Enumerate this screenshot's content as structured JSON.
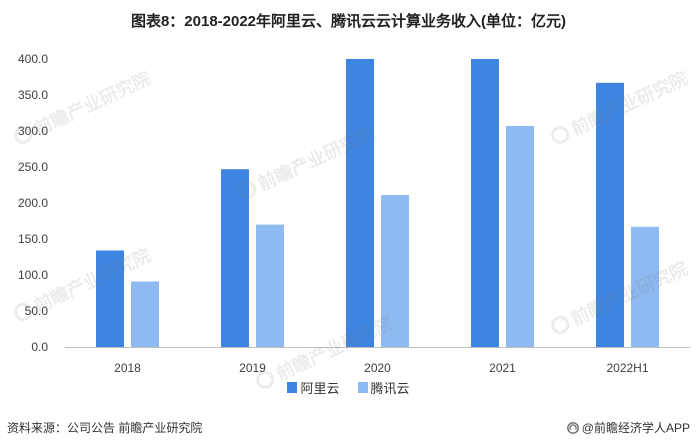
{
  "chart_data": {
    "type": "bar",
    "title": "图表8：2018-2022年阿里云、腾讯云云计算业务收入(单位：亿元)",
    "categories": [
      "2018",
      "2019",
      "2020",
      "2021",
      "2022H1"
    ],
    "series": [
      {
        "name": "阿里云",
        "color": "#3E85E2",
        "values": [
          134,
          247,
          400,
          400,
          367
        ]
      },
      {
        "name": "腾讯云",
        "color": "#8EB9F1",
        "values": [
          91,
          170,
          211,
          307,
          167
        ]
      }
    ],
    "ylim": [
      0,
      400
    ],
    "yticks": [
      0,
      50,
      100,
      150,
      200,
      250,
      300,
      350,
      400
    ],
    "ytick_labels": [
      "0.0",
      "50.0",
      "100.0",
      "150.0",
      "200.0",
      "250.0",
      "300.0",
      "350.0",
      "400.0"
    ],
    "grid": false,
    "legend_position": "bottom-center"
  },
  "footer": {
    "source": "资料来源：公司公告 前瞻产业研究院",
    "brand": "@前瞻经济学人APP",
    "brand_icon": "qianzhan-logo-icon"
  },
  "watermark": {
    "text": "前瞻产业研究院",
    "icon": "qianzhan-logo-icon"
  }
}
